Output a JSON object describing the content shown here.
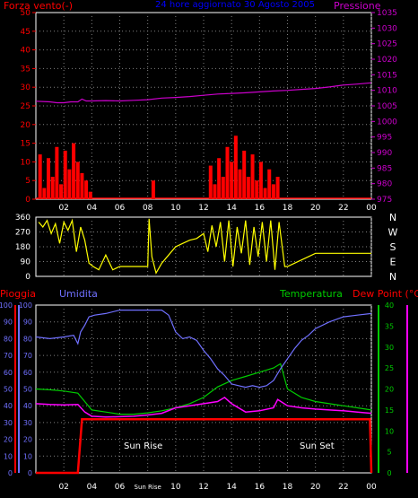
{
  "labels": {
    "wind_axis": "Forza vento(-)",
    "top_title": "24 hore aggiornato  30 Agosto 2005",
    "pressure_axis": "Pressione",
    "rain_axis": "Pioggia",
    "humidity_axis": "Umidita",
    "temperature_axis": "Temperatura",
    "dewpoint_axis": "Dew Point (°C)",
    "sunrise": "Sun Rise",
    "sunset": "Sun Set",
    "sunrise_tick": "Sun Rise"
  },
  "colors": {
    "wind_axis": "#ff0000",
    "pressure": "#cc00cc",
    "title": "#0000ff",
    "direction": "#ffff00",
    "humidity": "#7070ff",
    "temperature": "#00cc00",
    "dewpoint": "#ff00ff",
    "rain": "#ff0000",
    "grid": "#808080",
    "text": "#ffffff"
  },
  "chart_data": [
    {
      "type": "line",
      "name": "wind-pressure",
      "x_ticks": [
        "02",
        "04",
        "06",
        "08",
        "10",
        "12",
        "14",
        "16",
        "18",
        "20",
        "22",
        "00"
      ],
      "xlim": [
        0,
        24
      ],
      "y_left_ticks": [
        "0",
        "5",
        "10",
        "15",
        "20",
        "25",
        "30",
        "35",
        "40",
        "45",
        "50"
      ],
      "y_left_lim": [
        0,
        50
      ],
      "y_right_ticks": [
        "975",
        "980",
        "985",
        "990",
        "995",
        "1000",
        "1005",
        "1010",
        "1015",
        "1020",
        "1025",
        "1030",
        "1035"
      ],
      "y_right_lim": [
        975,
        1035
      ],
      "series": [
        {
          "name": "Pressione",
          "axis": "right",
          "x": [
            0,
            1,
            1.5,
            2,
            2.5,
            3,
            3.3,
            3.6,
            4,
            5,
            6,
            7,
            8,
            9,
            10,
            11,
            12,
            13,
            14,
            15,
            16,
            17,
            18,
            19,
            20,
            21,
            22,
            23,
            24
          ],
          "y": [
            1006.5,
            1006.3,
            1006.0,
            1006.0,
            1006.3,
            1006.3,
            1007.2,
            1006.6,
            1006.6,
            1006.7,
            1006.6,
            1006.8,
            1007.0,
            1007.5,
            1007.7,
            1008.0,
            1008.4,
            1008.8,
            1009.0,
            1009.2,
            1009.5,
            1009.8,
            1010.0,
            1010.3,
            1010.6,
            1011.1,
            1011.7,
            1012.0,
            1012.4
          ]
        },
        {
          "name": "wind",
          "axis": "left",
          "x": [
            0,
            0.3,
            0.6,
            0.9,
            1.2,
            1.5,
            1.8,
            2.1,
            2.4,
            2.7,
            3.0,
            3.3,
            3.6,
            3.9,
            4.0,
            8.2,
            8.4,
            12.2,
            12.5,
            12.8,
            13.1,
            13.4,
            13.7,
            14.0,
            14.3,
            14.6,
            14.9,
            15.2,
            15.5,
            15.8,
            16.1,
            16.4,
            16.7,
            17.0,
            17.3,
            17.6
          ],
          "y": [
            0,
            12,
            3,
            11,
            6,
            14,
            4,
            13,
            8,
            15,
            10,
            7,
            5,
            2,
            0,
            0,
            5,
            0,
            9,
            4,
            11,
            6,
            14,
            10,
            17,
            8,
            13,
            6,
            12,
            5,
            10,
            3,
            8,
            4,
            6,
            0
          ]
        }
      ]
    },
    {
      "type": "line",
      "name": "wind-direction",
      "xlim": [
        0,
        24
      ],
      "y_left_ticks": [
        "0",
        "90",
        "180",
        "270",
        "360"
      ],
      "y_left_lim": [
        0,
        360
      ],
      "y_right_ticks": [
        "N",
        "W",
        "S",
        "E",
        "N"
      ],
      "series": [
        {
          "name": "direction",
          "x": [
            0.2,
            0.5,
            0.8,
            1.1,
            1.4,
            1.7,
            2.0,
            2.3,
            2.6,
            2.9,
            3.2,
            3.5,
            3.8,
            4.1,
            4.5,
            5,
            5.5,
            6,
            7,
            8,
            8.1,
            8.3,
            8.6,
            9,
            9.5,
            10,
            10.5,
            11,
            11.5,
            12,
            12.3,
            12.6,
            12.9,
            13.2,
            13.5,
            13.8,
            14.1,
            14.4,
            14.7,
            15.0,
            15.3,
            15.6,
            15.9,
            16.2,
            16.5,
            16.8,
            17.1,
            17.4,
            17.8,
            18,
            19,
            20,
            21,
            22,
            23,
            24
          ],
          "y": [
            330,
            300,
            340,
            260,
            320,
            200,
            330,
            280,
            340,
            150,
            300,
            220,
            80,
            60,
            40,
            130,
            40,
            60,
            60,
            60,
            350,
            120,
            20,
            80,
            130,
            180,
            200,
            220,
            230,
            260,
            150,
            310,
            180,
            330,
            90,
            340,
            60,
            300,
            140,
            340,
            70,
            300,
            120,
            330,
            90,
            340,
            40,
            330,
            60,
            60,
            100,
            140,
            140,
            140,
            140,
            140
          ]
        }
      ]
    },
    {
      "type": "line",
      "name": "rain-humidity-temperature",
      "xlim": [
        0,
        24
      ],
      "y_left_ticks": [
        "0",
        "10",
        "20",
        "30",
        "40",
        "50",
        "60",
        "70",
        "80",
        "90",
        "100"
      ],
      "y_left_lim": [
        0,
        100
      ],
      "y_right_ticks": [
        "0",
        "5",
        "10",
        "15",
        "20",
        "25",
        "30",
        "35",
        "40"
      ],
      "y_right_lim": [
        0,
        40
      ],
      "series": [
        {
          "name": "Umidita",
          "axis": "left",
          "x": [
            0,
            1,
            2,
            2.7,
            3,
            3.2,
            3.5,
            3.8,
            4.2,
            5,
            6,
            7,
            8,
            9,
            9.5,
            10,
            10.5,
            11,
            11.5,
            12,
            12.5,
            13,
            13.5,
            14,
            14.5,
            15,
            15.5,
            16,
            16.5,
            17,
            17.5,
            18,
            18.5,
            19,
            19.5,
            20,
            21,
            22,
            23,
            24
          ],
          "y": [
            81,
            80,
            81,
            82,
            77,
            84,
            88,
            93,
            94,
            95,
            97,
            97,
            97,
            97,
            94,
            84,
            80,
            81,
            79,
            73,
            68,
            62,
            58,
            53,
            52,
            51,
            52,
            51,
            52,
            55,
            62,
            68,
            74,
            79,
            82,
            86,
            90,
            93,
            94,
            95
          ]
        },
        {
          "name": "Temperatura",
          "axis": "right",
          "x": [
            0,
            1,
            2,
            3,
            3.5,
            4,
            5,
            6,
            7,
            8,
            9,
            10,
            11,
            12,
            13,
            14,
            15,
            16,
            17,
            17.5,
            18,
            19,
            20,
            21,
            22,
            23,
            24
          ],
          "y": [
            20,
            19.8,
            19.5,
            19,
            17,
            15,
            14.5,
            14,
            14,
            14.3,
            14.8,
            15.5,
            16.5,
            18,
            20.5,
            22,
            23,
            24,
            25,
            26,
            20,
            18,
            17,
            16.5,
            16,
            15.5,
            15
          ]
        },
        {
          "name": "Dew Point",
          "axis": "right",
          "x": [
            0,
            1,
            2,
            3,
            3.5,
            4,
            5,
            6,
            7,
            8,
            9,
            10,
            11,
            12,
            13,
            13.5,
            14,
            15,
            16,
            17,
            17.3,
            18,
            19,
            20,
            21,
            22,
            23,
            24
          ],
          "y": [
            16.5,
            16.3,
            16.2,
            16.3,
            14.5,
            13.5,
            13.3,
            13.4,
            13.5,
            13.8,
            14.2,
            15.5,
            16,
            16.5,
            17,
            18,
            16.5,
            14.5,
            14.8,
            15.5,
            17.5,
            16,
            15.5,
            15.2,
            15,
            14.8,
            14.5,
            14.2
          ]
        },
        {
          "name": "Pioggia",
          "axis": "left",
          "x": [
            0,
            2.5,
            3,
            3.3,
            23.9,
            24
          ],
          "y": [
            0,
            0,
            0,
            32,
            32,
            0
          ]
        }
      ]
    }
  ]
}
